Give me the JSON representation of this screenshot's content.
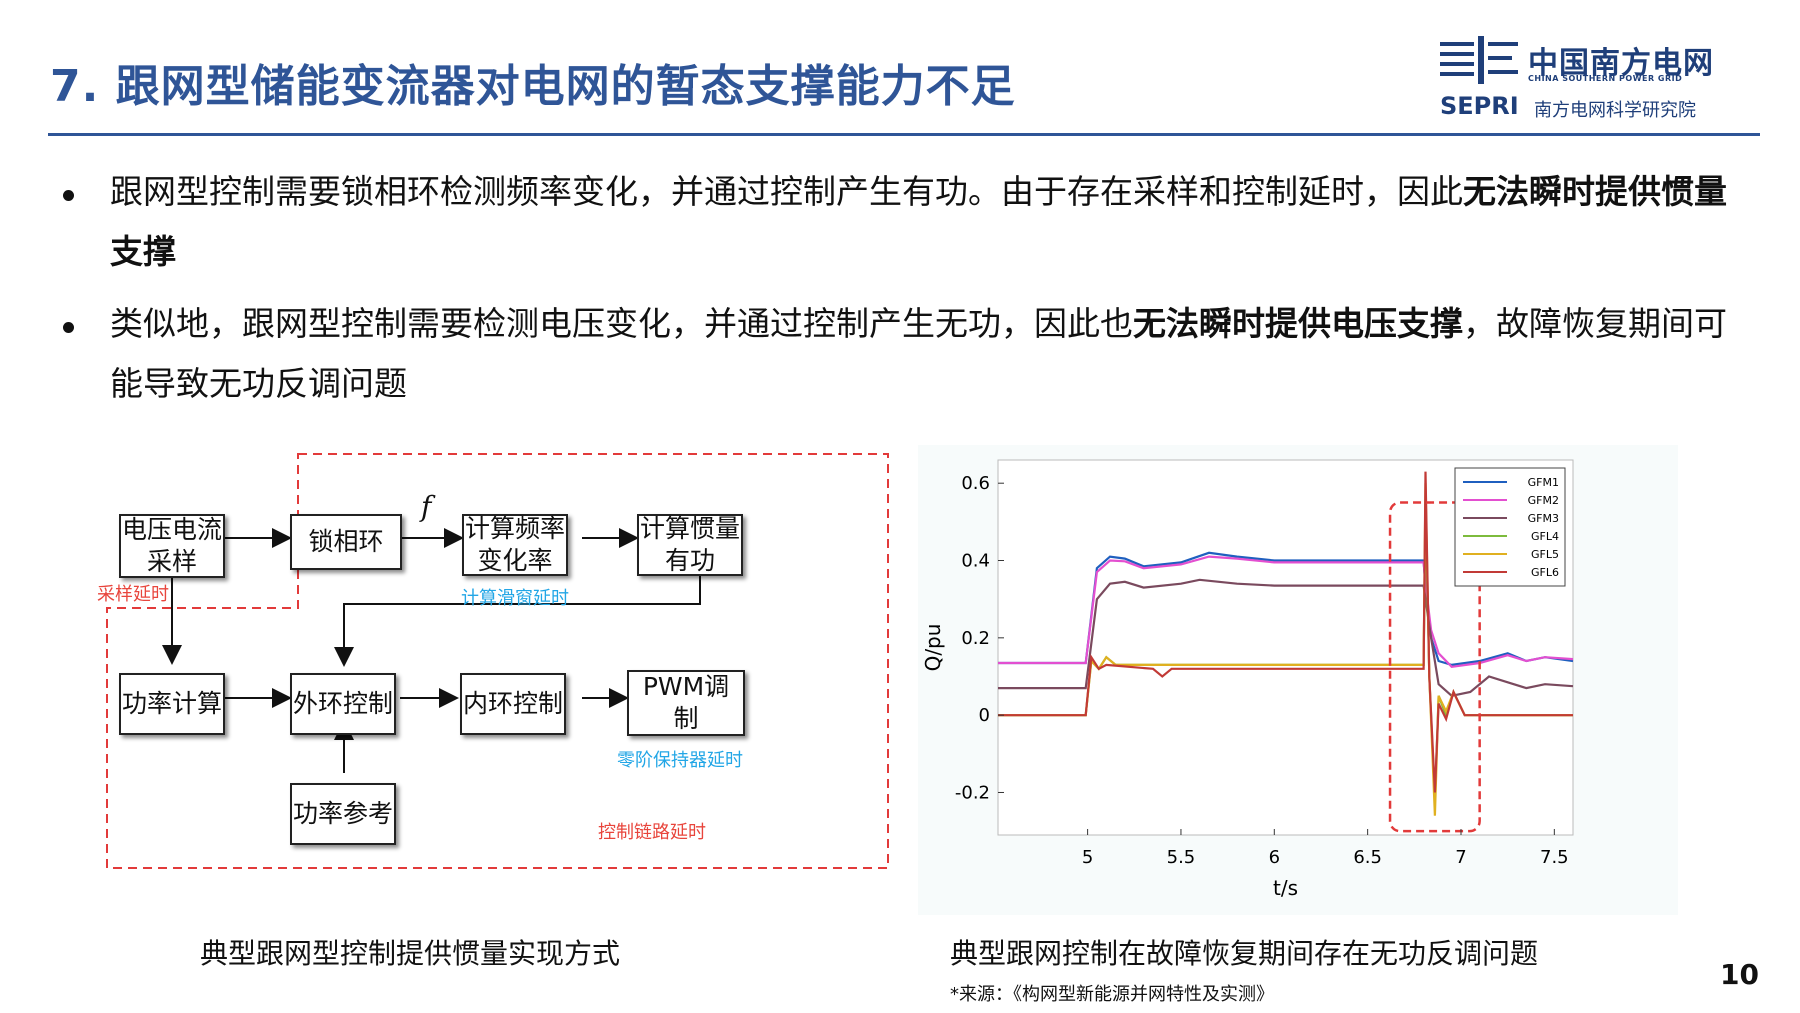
{
  "header": {
    "title": "7. 跟网型储能变流器对电网的暂态支撑能力不足",
    "logo": {
      "cn_name": "中国南方电网",
      "en_name": "CHINA SOUTHERN POWER GRID",
      "sepri": "SEPRI",
      "sepri_cn": "南方电网科学研究院"
    }
  },
  "bullets": [
    {
      "text": "跟网型控制需要锁相环检测频率变化，并通过控制产生有功。由于存在采样和控制延时，因此",
      "bold": "无法瞬时提供惯量支撑",
      "tail": ""
    },
    {
      "text": "类似地，跟网型控制需要检测电压变化，并通过控制产生无功，因此也",
      "bold": "无法瞬时提供电压支撑",
      "tail": "，故障恢复期间可能导致无功反调问题"
    }
  ],
  "diagram": {
    "boxes": {
      "sampling": "电压电流\n采样",
      "pll": "锁相环",
      "rocof": "计算频率\n变化率",
      "inertia": "计算惯量\n有功",
      "power_calc": "功率计算",
      "outer_loop": "外环控制",
      "inner_loop": "内环控制",
      "pwm": "PWM调\n制",
      "power_ref": "功率参考"
    },
    "f_label": "f",
    "notes": {
      "sampling_delay": "采样延时",
      "sliding_window_delay": "计算滑窗延时",
      "zoh_delay": "零阶保持器延时",
      "control_chain_delay": "控制链路延时"
    },
    "caption": "典型跟网型控制提供惯量实现方式"
  },
  "chart_data": {
    "type": "line",
    "xlabel": "t/s",
    "ylabel": "Q/pu",
    "xlim": [
      4.52,
      7.6
    ],
    "ylim": [
      -0.31,
      0.66
    ],
    "xticks": [
      5,
      5.5,
      6,
      6.5,
      7,
      7.5
    ],
    "yticks": [
      -0.2,
      0,
      0.2,
      0.4,
      0.6
    ],
    "xtick_labels": [
      "5",
      "5.5",
      "6",
      "6.5",
      "7",
      "7.5"
    ],
    "ytick_labels": [
      "-0.2",
      "0",
      "0.2",
      "0.4",
      "0.6"
    ],
    "legend_position": "top-right",
    "series": [
      {
        "name": "GFM1",
        "color": "#1f5fbf",
        "points": [
          [
            4.52,
            0.135
          ],
          [
            4.99,
            0.135
          ],
          [
            5.05,
            0.38
          ],
          [
            5.12,
            0.41
          ],
          [
            5.2,
            0.405
          ],
          [
            5.3,
            0.385
          ],
          [
            5.5,
            0.395
          ],
          [
            5.65,
            0.42
          ],
          [
            5.8,
            0.41
          ],
          [
            6.0,
            0.4
          ],
          [
            6.5,
            0.4
          ],
          [
            6.8,
            0.4
          ],
          [
            6.81,
            0.33
          ],
          [
            6.84,
            0.2
          ],
          [
            6.88,
            0.14
          ],
          [
            6.95,
            0.13
          ],
          [
            7.1,
            0.14
          ],
          [
            7.25,
            0.16
          ],
          [
            7.35,
            0.14
          ],
          [
            7.45,
            0.15
          ],
          [
            7.6,
            0.14
          ]
        ]
      },
      {
        "name": "GFM2",
        "color": "#e34fd0",
        "points": [
          [
            4.52,
            0.135
          ],
          [
            4.99,
            0.135
          ],
          [
            5.05,
            0.37
          ],
          [
            5.12,
            0.4
          ],
          [
            5.2,
            0.398
          ],
          [
            5.3,
            0.38
          ],
          [
            5.5,
            0.39
          ],
          [
            5.65,
            0.41
          ],
          [
            5.8,
            0.405
          ],
          [
            6.0,
            0.395
          ],
          [
            6.5,
            0.395
          ],
          [
            6.8,
            0.395
          ],
          [
            6.81,
            0.34
          ],
          [
            6.84,
            0.22
          ],
          [
            6.88,
            0.16
          ],
          [
            6.95,
            0.125
          ],
          [
            7.1,
            0.135
          ],
          [
            7.25,
            0.155
          ],
          [
            7.35,
            0.14
          ],
          [
            7.45,
            0.15
          ],
          [
            7.6,
            0.145
          ]
        ]
      },
      {
        "name": "GFM3",
        "color": "#7a4a5e",
        "points": [
          [
            4.52,
            0.07
          ],
          [
            4.99,
            0.07
          ],
          [
            5.05,
            0.3
          ],
          [
            5.12,
            0.34
          ],
          [
            5.2,
            0.345
          ],
          [
            5.3,
            0.33
          ],
          [
            5.5,
            0.34
          ],
          [
            5.6,
            0.35
          ],
          [
            5.8,
            0.34
          ],
          [
            6.0,
            0.335
          ],
          [
            6.5,
            0.335
          ],
          [
            6.8,
            0.335
          ],
          [
            6.81,
            0.3
          ],
          [
            6.84,
            0.2
          ],
          [
            6.88,
            0.08
          ],
          [
            6.95,
            0.05
          ],
          [
            7.05,
            0.06
          ],
          [
            7.15,
            0.1
          ],
          [
            7.25,
            0.085
          ],
          [
            7.35,
            0.07
          ],
          [
            7.45,
            0.08
          ],
          [
            7.6,
            0.075
          ]
        ]
      },
      {
        "name": "GFL4",
        "color": "#7dbb3c",
        "points": [
          [
            4.52,
            0.0
          ],
          [
            4.99,
            0.0
          ],
          [
            5.02,
            0.14
          ],
          [
            5.06,
            0.12
          ],
          [
            5.1,
            0.15
          ],
          [
            5.15,
            0.13
          ],
          [
            5.4,
            0.13
          ],
          [
            6.8,
            0.13
          ],
          [
            6.81,
            0.55
          ],
          [
            6.83,
            0.1
          ],
          [
            6.86,
            -0.22
          ],
          [
            6.88,
            0.05
          ],
          [
            6.92,
            0.0
          ],
          [
            6.96,
            0.06
          ],
          [
            7.02,
            0.0
          ],
          [
            7.2,
            0.0
          ],
          [
            7.6,
            0.0
          ]
        ]
      },
      {
        "name": "GFL5",
        "color": "#e0b020",
        "points": [
          [
            4.52,
            0.0
          ],
          [
            4.99,
            0.0
          ],
          [
            5.02,
            0.14
          ],
          [
            5.06,
            0.12
          ],
          [
            5.1,
            0.15
          ],
          [
            5.15,
            0.13
          ],
          [
            5.4,
            0.13
          ],
          [
            6.8,
            0.13
          ],
          [
            6.81,
            0.6
          ],
          [
            6.83,
            0.1
          ],
          [
            6.86,
            -0.26
          ],
          [
            6.88,
            0.05
          ],
          [
            6.92,
            0.01
          ],
          [
            6.96,
            0.06
          ],
          [
            7.02,
            0.0
          ],
          [
            7.2,
            0.0
          ],
          [
            7.6,
            0.0
          ]
        ]
      },
      {
        "name": "GFL6",
        "color": "#c23a36",
        "points": [
          [
            4.52,
            0.0
          ],
          [
            4.99,
            0.0
          ],
          [
            5.02,
            0.15
          ],
          [
            5.06,
            0.12
          ],
          [
            5.1,
            0.13
          ],
          [
            5.35,
            0.12
          ],
          [
            5.4,
            0.1
          ],
          [
            5.45,
            0.12
          ],
          [
            6.8,
            0.12
          ],
          [
            6.81,
            0.63
          ],
          [
            6.83,
            0.1
          ],
          [
            6.86,
            -0.2
          ],
          [
            6.88,
            0.03
          ],
          [
            6.92,
            -0.01
          ],
          [
            6.96,
            0.06
          ],
          [
            7.02,
            0.0
          ],
          [
            7.2,
            0.0
          ],
          [
            7.6,
            0.0
          ]
        ]
      }
    ],
    "highlight_x": [
      6.45,
      6.55
    ]
  },
  "chart_caption": "典型跟网控制在故障恢复期间存在无功反调问题",
  "source": "*来源：《构网型新能源并网特性及实测》",
  "page_number": "10"
}
